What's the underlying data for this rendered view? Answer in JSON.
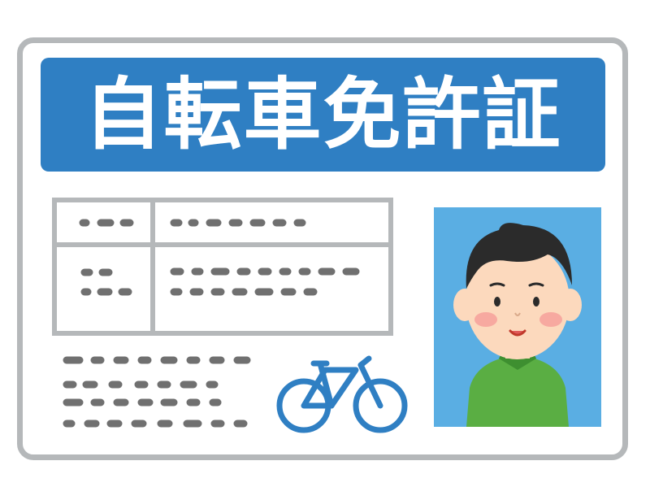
{
  "license": {
    "title": "自転車免許証",
    "colors": {
      "header": "#2f7fc3",
      "border": "#b5b8ba",
      "photo_bg": "#5aaee3",
      "shirt": "#5aae43",
      "bicycle": "#2f7fc3"
    },
    "icons": {
      "bicycle": "bicycle-icon",
      "portrait": "person-portrait-icon"
    }
  }
}
